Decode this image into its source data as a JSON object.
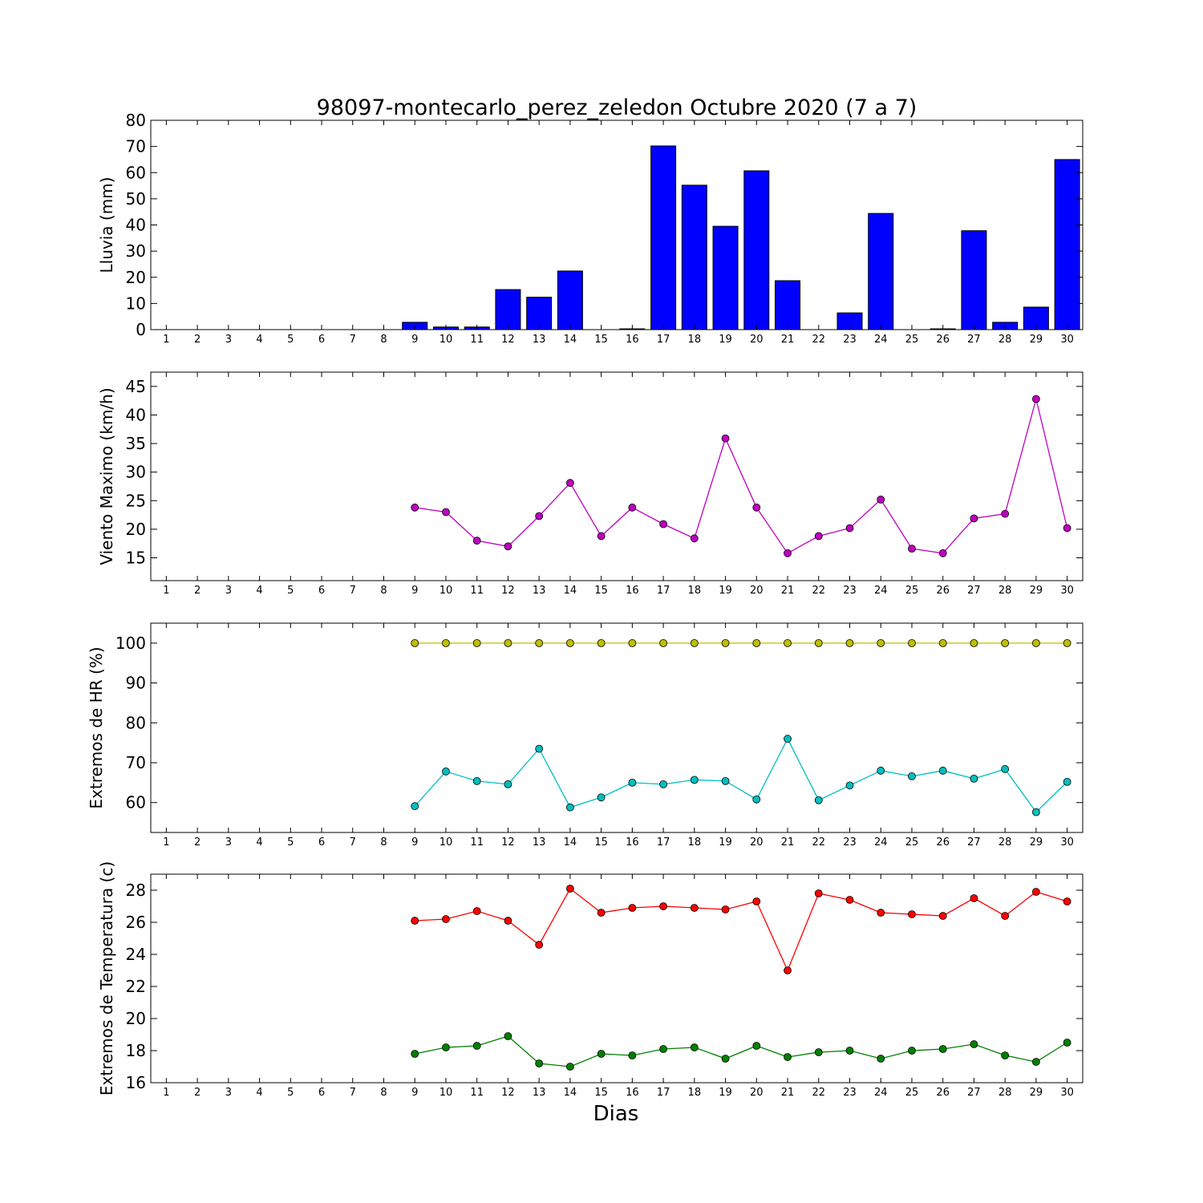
{
  "chart_data": [
    {
      "type": "bar",
      "title": "98097-montecarlo_perez_zeledon Octubre 2020  (7 a 7)",
      "ylabel": "Lluvia (mm)",
      "xlabel": "",
      "x": [
        1,
        2,
        3,
        4,
        5,
        6,
        7,
        8,
        9,
        10,
        11,
        12,
        13,
        14,
        15,
        16,
        17,
        18,
        19,
        20,
        21,
        22,
        23,
        24,
        25,
        26,
        27,
        28,
        29,
        30
      ],
      "xlim": [
        0.5,
        30.5
      ],
      "ylim": [
        0,
        80
      ],
      "yticks": [
        0,
        10,
        20,
        30,
        40,
        50,
        60,
        70,
        80
      ],
      "grid": false,
      "series": [
        {
          "color": "#0000ff",
          "values": [
            0,
            0,
            0,
            0,
            0,
            0,
            0,
            0,
            2.8,
            1.0,
            1.0,
            15.3,
            12.4,
            22.4,
            0,
            0.3,
            70.2,
            55.2,
            39.5,
            60.7,
            18.7,
            0,
            6.4,
            44.4,
            0,
            0.3,
            37.8,
            2.8,
            8.6,
            65.0
          ]
        }
      ]
    },
    {
      "type": "line",
      "title": "",
      "ylabel": "Viento Maximo (km/h)",
      "xlabel": "",
      "x": [
        1,
        2,
        3,
        4,
        5,
        6,
        7,
        8,
        9,
        10,
        11,
        12,
        13,
        14,
        15,
        16,
        17,
        18,
        19,
        20,
        21,
        22,
        23,
        24,
        25,
        26,
        27,
        28,
        29,
        30
      ],
      "xlim": [
        0.5,
        30.5
      ],
      "ylim": [
        11,
        47.5
      ],
      "yticks": [
        15,
        20,
        25,
        30,
        35,
        40,
        45
      ],
      "grid": false,
      "series": [
        {
          "color": "#bf00bf",
          "values": [
            null,
            null,
            null,
            null,
            null,
            null,
            null,
            null,
            23.8,
            23.0,
            18.0,
            17.0,
            22.3,
            28.1,
            18.8,
            23.8,
            20.9,
            18.4,
            35.9,
            23.8,
            15.8,
            18.8,
            20.2,
            25.2,
            16.6,
            15.8,
            21.9,
            22.7,
            42.8,
            20.2
          ]
        }
      ]
    },
    {
      "type": "line",
      "title": "",
      "ylabel": "Extremos de HR (%)",
      "xlabel": "",
      "x": [
        1,
        2,
        3,
        4,
        5,
        6,
        7,
        8,
        9,
        10,
        11,
        12,
        13,
        14,
        15,
        16,
        17,
        18,
        19,
        20,
        21,
        22,
        23,
        24,
        25,
        26,
        27,
        28,
        29,
        30
      ],
      "xlim": [
        0.5,
        30.5
      ],
      "ylim": [
        52.5,
        105
      ],
      "yticks": [
        60,
        70,
        80,
        90,
        100
      ],
      "grid": false,
      "series": [
        {
          "color": "#bfbf00",
          "values": [
            null,
            null,
            null,
            null,
            null,
            null,
            null,
            null,
            100,
            100,
            100,
            100,
            100,
            100,
            100,
            100,
            100,
            100,
            100,
            100,
            100,
            100,
            100,
            100,
            100,
            100,
            100,
            100,
            100,
            100
          ]
        },
        {
          "color": "#00bfbf",
          "values": [
            null,
            null,
            null,
            null,
            null,
            null,
            null,
            null,
            59.1,
            67.8,
            65.4,
            64.6,
            73.5,
            58.8,
            61.3,
            65.0,
            64.6,
            65.7,
            65.4,
            60.8,
            76.0,
            60.6,
            64.3,
            68.0,
            66.6,
            68.0,
            66.0,
            68.4,
            57.6,
            65.2
          ]
        }
      ]
    },
    {
      "type": "line",
      "title": "",
      "ylabel": "Extremos de Temperatura (c)",
      "xlabel": "Dias",
      "x": [
        1,
        2,
        3,
        4,
        5,
        6,
        7,
        8,
        9,
        10,
        11,
        12,
        13,
        14,
        15,
        16,
        17,
        18,
        19,
        20,
        21,
        22,
        23,
        24,
        25,
        26,
        27,
        28,
        29,
        30
      ],
      "xlim": [
        0.5,
        30.5
      ],
      "ylim": [
        16,
        29
      ],
      "yticks": [
        16,
        18,
        20,
        22,
        24,
        26,
        28
      ],
      "grid": false,
      "series": [
        {
          "color": "#ff0000",
          "values": [
            null,
            null,
            null,
            null,
            null,
            null,
            null,
            null,
            26.1,
            26.2,
            26.7,
            26.1,
            24.6,
            28.1,
            26.6,
            26.9,
            27.0,
            26.9,
            26.8,
            27.3,
            23.0,
            27.8,
            27.4,
            26.6,
            26.5,
            26.4,
            27.5,
            26.4,
            27.9,
            27.3
          ]
        },
        {
          "color": "#008000",
          "values": [
            null,
            null,
            null,
            null,
            null,
            null,
            null,
            null,
            17.8,
            18.2,
            18.3,
            18.9,
            17.2,
            17.0,
            17.8,
            17.7,
            18.1,
            18.2,
            17.5,
            18.3,
            17.6,
            17.9,
            18.0,
            17.5,
            18.0,
            18.1,
            18.4,
            17.7,
            17.3,
            18.5
          ]
        }
      ]
    }
  ]
}
